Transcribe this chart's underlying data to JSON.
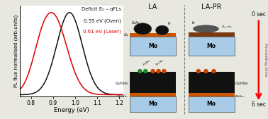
{
  "title": "Deficit E₀ – qFLs",
  "black_label": "0.55 eV (Oven)",
  "red_label": "0.61 eV (Laser)",
  "xlabel": "Energy (eV)",
  "ylabel": "PL flux normalised (arb.units)",
  "xlim": [
    0.75,
    1.22
  ],
  "ylim": [
    -0.02,
    1.08
  ],
  "xticks": [
    0.8,
    0.9,
    1.0,
    1.1,
    1.2
  ],
  "black_peak": 0.975,
  "black_sigma": 0.058,
  "red_peak": 0.9,
  "red_sigma": 0.063,
  "black_color": "#111111",
  "red_color": "#dd0000",
  "plot_bg": "#ffffff",
  "fig_bg": "#e8e8e0",
  "la_title": "LA",
  "lapr_title": "LA-PR",
  "time_0": "0 sec",
  "time_6": "6 sec",
  "anneal_label": "Annealing time",
  "mo_color": "#a8cce8",
  "cu_color": "#cc5500",
  "dark_color": "#111111",
  "brown_color": "#7a3a10",
  "green_color": "#228B22",
  "orange_color": "#cc4400"
}
